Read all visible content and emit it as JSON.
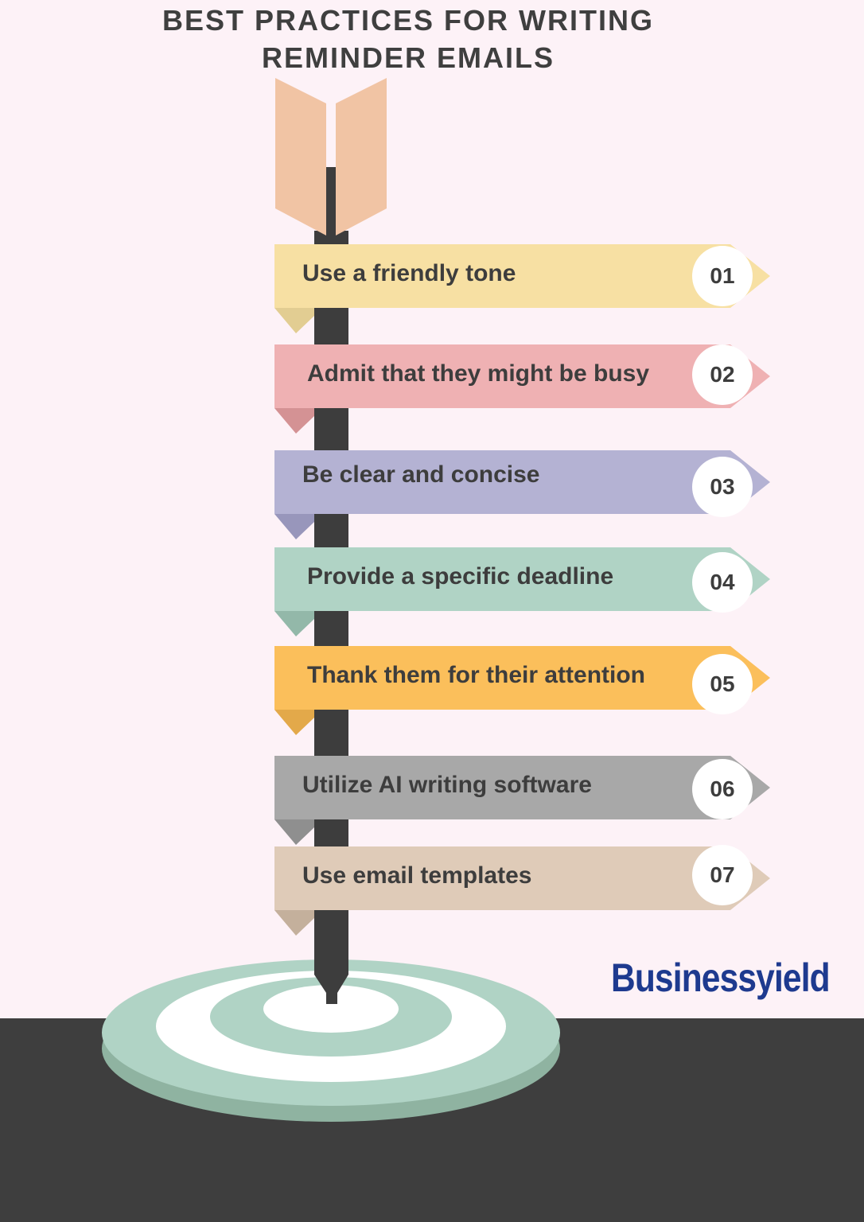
{
  "title_lines": [
    "BEST PRACTICES FOR WRITING",
    "REMINDER EMAILS"
  ],
  "items": [
    {
      "number": "01",
      "label": "Use a friendly tone",
      "color": "#f7e0a3",
      "flap": "#e2cd92"
    },
    {
      "number": "02",
      "label": "Admit that they might be busy",
      "color": "#efb1b3",
      "flap": "#d49294"
    },
    {
      "number": "03",
      "label": "Be clear and concise",
      "color": "#b4b2d3",
      "flap": "#9896bb"
    },
    {
      "number": "04",
      "label": "Provide a specific deadline",
      "color": "#b0d3c5",
      "flap": "#93b8a9"
    },
    {
      "number": "05",
      "label": "Thank them for their attention",
      "color": "#fbbf5b",
      "flap": "#e3a94a"
    },
    {
      "number": "06",
      "label": "Utilize AI writing software",
      "color": "#a8a8a8",
      "flap": "#8f8f8f"
    },
    {
      "number": "07",
      "label": "Use email templates",
      "color": "#dfcbb8",
      "flap": "#c4b09c"
    }
  ],
  "logo": {
    "text": "Businessyield",
    "color": "#1e3a8f"
  },
  "colors": {
    "background": "#fdf2f7",
    "ground": "#3e3e3e",
    "shaft": "#3d3d3d",
    "fletching": "#f1c4a4",
    "target_green": "#b0d3c5"
  }
}
